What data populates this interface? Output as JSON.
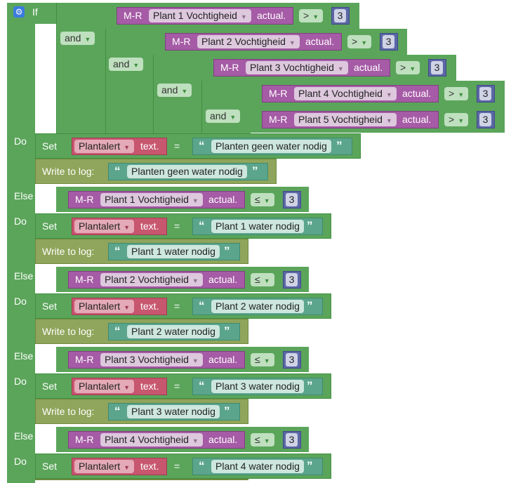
{
  "colors": {
    "logic": "#5ba55b",
    "sensor": "#a55ba5",
    "variable": "#c7566f",
    "text": "#5ba58c",
    "log": "#8fa55b",
    "number": "#5b67a5"
  },
  "labels": {
    "if": "If",
    "do": "Do",
    "else_if": "Else if",
    "and": "and",
    "mr": "M-R",
    "actual": "actual.",
    "set": "Set",
    "text_suffix": "text.",
    "equals": "=",
    "write_to_log": "Write to log:",
    "open_quote": "“",
    "close_quote": "”",
    "gt": ">",
    "le": "≤"
  },
  "if_conditions": [
    {
      "sensor": "Plant 1 Vochtigheid",
      "op": ">",
      "value": "3"
    },
    {
      "sensor": "Plant 2 Vochtigheid",
      "op": ">",
      "value": "3"
    },
    {
      "sensor": "Plant 3 Vochtigheid",
      "op": ">",
      "value": "3"
    },
    {
      "sensor": "Plant 4 Vochtigheid",
      "op": ">",
      "value": "3"
    },
    {
      "sensor": "Plant 5 Vochtigheid",
      "op": ">",
      "value": "3"
    }
  ],
  "do_block": {
    "variable": "Plantalert",
    "text": "Planten geen water nodig",
    "log": "Planten geen water nodig"
  },
  "else_ifs": [
    {
      "sensor": "Plant 1 Vochtigheid",
      "op": "≤",
      "value": "3",
      "variable": "Plantalert",
      "text": "Plant 1 water nodig",
      "log": "Plant 1 water nodig"
    },
    {
      "sensor": "Plant 2 Vochtigheid",
      "op": "≤",
      "value": "3",
      "variable": "Plantalert",
      "text": "Plant 2 water nodig",
      "log": "Plant 2 water nodig"
    },
    {
      "sensor": "Plant 3 Vochtigheid",
      "op": "≤",
      "value": "3",
      "variable": "Plantalert",
      "text": "Plant 3 water nodig",
      "log": "Plant 3 water nodig"
    },
    {
      "sensor": "Plant 4 Vochtigheid",
      "op": "≤",
      "value": "3",
      "variable": "Plantalert",
      "text": "Plant 4 water nodig"
    }
  ]
}
